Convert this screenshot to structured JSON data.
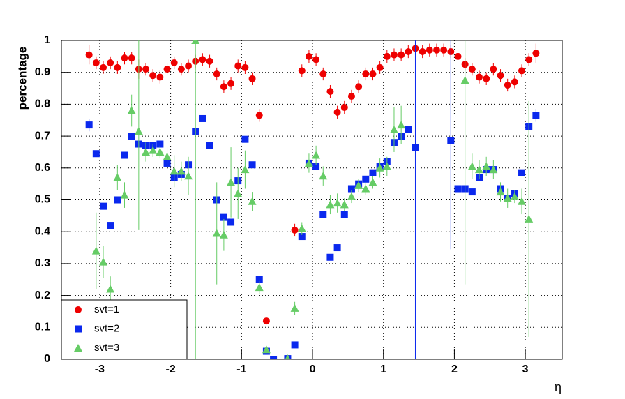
{
  "chart_data": {
    "type": "scatter",
    "x_label": "η",
    "y_label": "percentage",
    "xlim": [
      -3.54,
      3.52
    ],
    "ylim": [
      0,
      1
    ],
    "xticks": [
      -3,
      -2,
      -1,
      0,
      1,
      2,
      3
    ],
    "yticks": [
      0,
      0.1,
      0.2,
      0.3,
      0.4,
      0.5,
      0.6,
      0.7,
      0.8,
      0.9,
      1
    ],
    "grid": true,
    "legend": "lower left",
    "x": [
      -3.15,
      -3.05,
      -2.95,
      -2.85,
      -2.75,
      -2.65,
      -2.55,
      -2.45,
      -2.35,
      -2.25,
      -2.15,
      -2.05,
      -1.95,
      -1.85,
      -1.75,
      -1.65,
      -1.55,
      -1.45,
      -1.35,
      -1.25,
      -1.15,
      -1.05,
      -0.95,
      -0.85,
      -0.75,
      -0.65,
      -0.55,
      -0.45,
      -0.35,
      -0.25,
      -0.15,
      -0.05,
      0.05,
      0.15,
      0.25,
      0.35,
      0.45,
      0.55,
      0.65,
      0.75,
      0.85,
      0.95,
      1.05,
      1.15,
      1.25,
      1.35,
      1.45,
      1.55,
      1.65,
      1.75,
      1.85,
      1.95,
      2.05,
      2.15,
      2.25,
      2.35,
      2.45,
      2.55,
      2.65,
      2.75,
      2.85,
      2.95,
      3.05,
      3.15
    ],
    "series": [
      {
        "name": "svt=1",
        "color": "#ee0000",
        "marker": "circle",
        "values": [
          0.955,
          0.93,
          0.915,
          0.93,
          0.915,
          0.945,
          0.945,
          0.91,
          0.91,
          0.89,
          0.885,
          0.91,
          0.93,
          0.91,
          0.92,
          0.935,
          0.94,
          0.935,
          0.895,
          0.855,
          0.865,
          0.92,
          0.915,
          0.88,
          0.765,
          0.12,
          null,
          null,
          null,
          0.405,
          0.905,
          0.95,
          0.94,
          0.895,
          0.84,
          0.775,
          0.79,
          0.825,
          0.855,
          0.895,
          0.895,
          0.915,
          0.95,
          0.955,
          0.955,
          0.965,
          0.975,
          0.965,
          0.97,
          0.97,
          0.97,
          0.965,
          0.95,
          0.925,
          0.91,
          0.885,
          0.88,
          0.91,
          0.89,
          0.86,
          0.87,
          0.905,
          0.94,
          0.96
        ],
        "errors": [
          0.03,
          0.02,
          0.02,
          0.02,
          0.02,
          0.02,
          0.02,
          0.03,
          0.02,
          0.02,
          0.02,
          0.02,
          0.02,
          0.02,
          0.02,
          0.02,
          0.02,
          0.02,
          0.02,
          0.02,
          0.02,
          0.02,
          0.02,
          0.02,
          0.02,
          0.01,
          null,
          null,
          null,
          0.02,
          0.02,
          0.02,
          0.02,
          0.02,
          0.02,
          0.02,
          0.02,
          0.02,
          0.02,
          0.02,
          0.02,
          0.02,
          0.02,
          0.02,
          0.02,
          0.02,
          0.02,
          0.02,
          0.02,
          0.02,
          0.02,
          0.02,
          0.02,
          0.02,
          0.02,
          0.02,
          0.02,
          0.02,
          0.02,
          0.02,
          0.02,
          0.02,
          0.02,
          0.03
        ]
      },
      {
        "name": "svt=2",
        "color": "#0a28ee",
        "marker": "square",
        "values": [
          0.735,
          0.645,
          0.48,
          0.42,
          0.5,
          0.64,
          0.7,
          0.675,
          0.67,
          0.67,
          0.675,
          0.615,
          0.57,
          0.58,
          0.61,
          0.715,
          0.755,
          0.67,
          0.5,
          0.445,
          0.43,
          0.56,
          0.69,
          0.61,
          0.25,
          0.025,
          0,
          null,
          0.002,
          0.045,
          0.385,
          0.615,
          0.605,
          0.455,
          0.32,
          0.35,
          0.455,
          0.535,
          0.55,
          0.565,
          0.585,
          0.605,
          0.62,
          0.68,
          0.7,
          0.72,
          0.665,
          null,
          null,
          null,
          null,
          0.685,
          0.535,
          0.535,
          0.525,
          0.57,
          0.595,
          0.595,
          0.535,
          0.505,
          0.52,
          0.585,
          0.73,
          0.765
        ],
        "errors": [
          0.02,
          0.01,
          0.01,
          0.01,
          0.01,
          0.01,
          0.01,
          0.01,
          0.01,
          0.01,
          0.01,
          0.01,
          0.01,
          0.01,
          0.01,
          0.01,
          0.01,
          0.01,
          0.01,
          0.01,
          0.01,
          0.01,
          0.01,
          0.01,
          0.01,
          0.01,
          0.01,
          null,
          0.01,
          0.01,
          0.01,
          0.01,
          0.01,
          0.01,
          0.01,
          0.01,
          0.01,
          0.01,
          0.01,
          0.01,
          0.01,
          0.01,
          0.01,
          0.01,
          0.01,
          0.01,
          0.665,
          null,
          null,
          null,
          null,
          0.34,
          0.01,
          0.01,
          0.01,
          0.01,
          0.01,
          0.01,
          0.01,
          0.01,
          0.01,
          0.01,
          0.01,
          0.02
        ]
      },
      {
        "name": "svt=3",
        "color": "#66cc66",
        "marker": "triangle",
        "values": [
          null,
          0.34,
          0.305,
          0.22,
          0.57,
          0.515,
          0.78,
          0.715,
          0.65,
          0.655,
          0.65,
          0.635,
          0.59,
          0.59,
          0.575,
          1.0,
          null,
          null,
          0.395,
          0.39,
          0.555,
          0.52,
          0.595,
          0.495,
          0.225,
          0.03,
          null,
          null,
          0.002,
          0.16,
          0.41,
          0.615,
          0.64,
          0.575,
          0.485,
          0.49,
          0.485,
          0.51,
          0.545,
          0.535,
          0.555,
          0.6,
          0.605,
          0.72,
          0.735,
          null,
          null,
          null,
          null,
          null,
          null,
          null,
          null,
          0.875,
          0.605,
          0.595,
          0.605,
          0.595,
          0.525,
          0.505,
          0.51,
          0.495,
          0.44,
          null
        ],
        "errors": [
          null,
          0.12,
          0.05,
          0.04,
          0.04,
          0.04,
          0.05,
          0.31,
          0.03,
          0.02,
          0.02,
          0.03,
          0.05,
          0.03,
          0.06,
          1.0,
          null,
          null,
          0.16,
          0.05,
          0.11,
          0.08,
          0.06,
          0.03,
          0.02,
          0.01,
          null,
          null,
          0.01,
          0.02,
          0.02,
          0.03,
          0.03,
          0.03,
          0.03,
          0.03,
          0.02,
          0.02,
          0.02,
          0.02,
          0.02,
          0.03,
          0.03,
          0.07,
          0.06,
          null,
          null,
          null,
          null,
          null,
          null,
          null,
          null,
          0.64,
          0.04,
          0.03,
          0.03,
          0.03,
          0.03,
          0.03,
          0.02,
          0.04,
          0.37,
          null
        ]
      }
    ]
  }
}
